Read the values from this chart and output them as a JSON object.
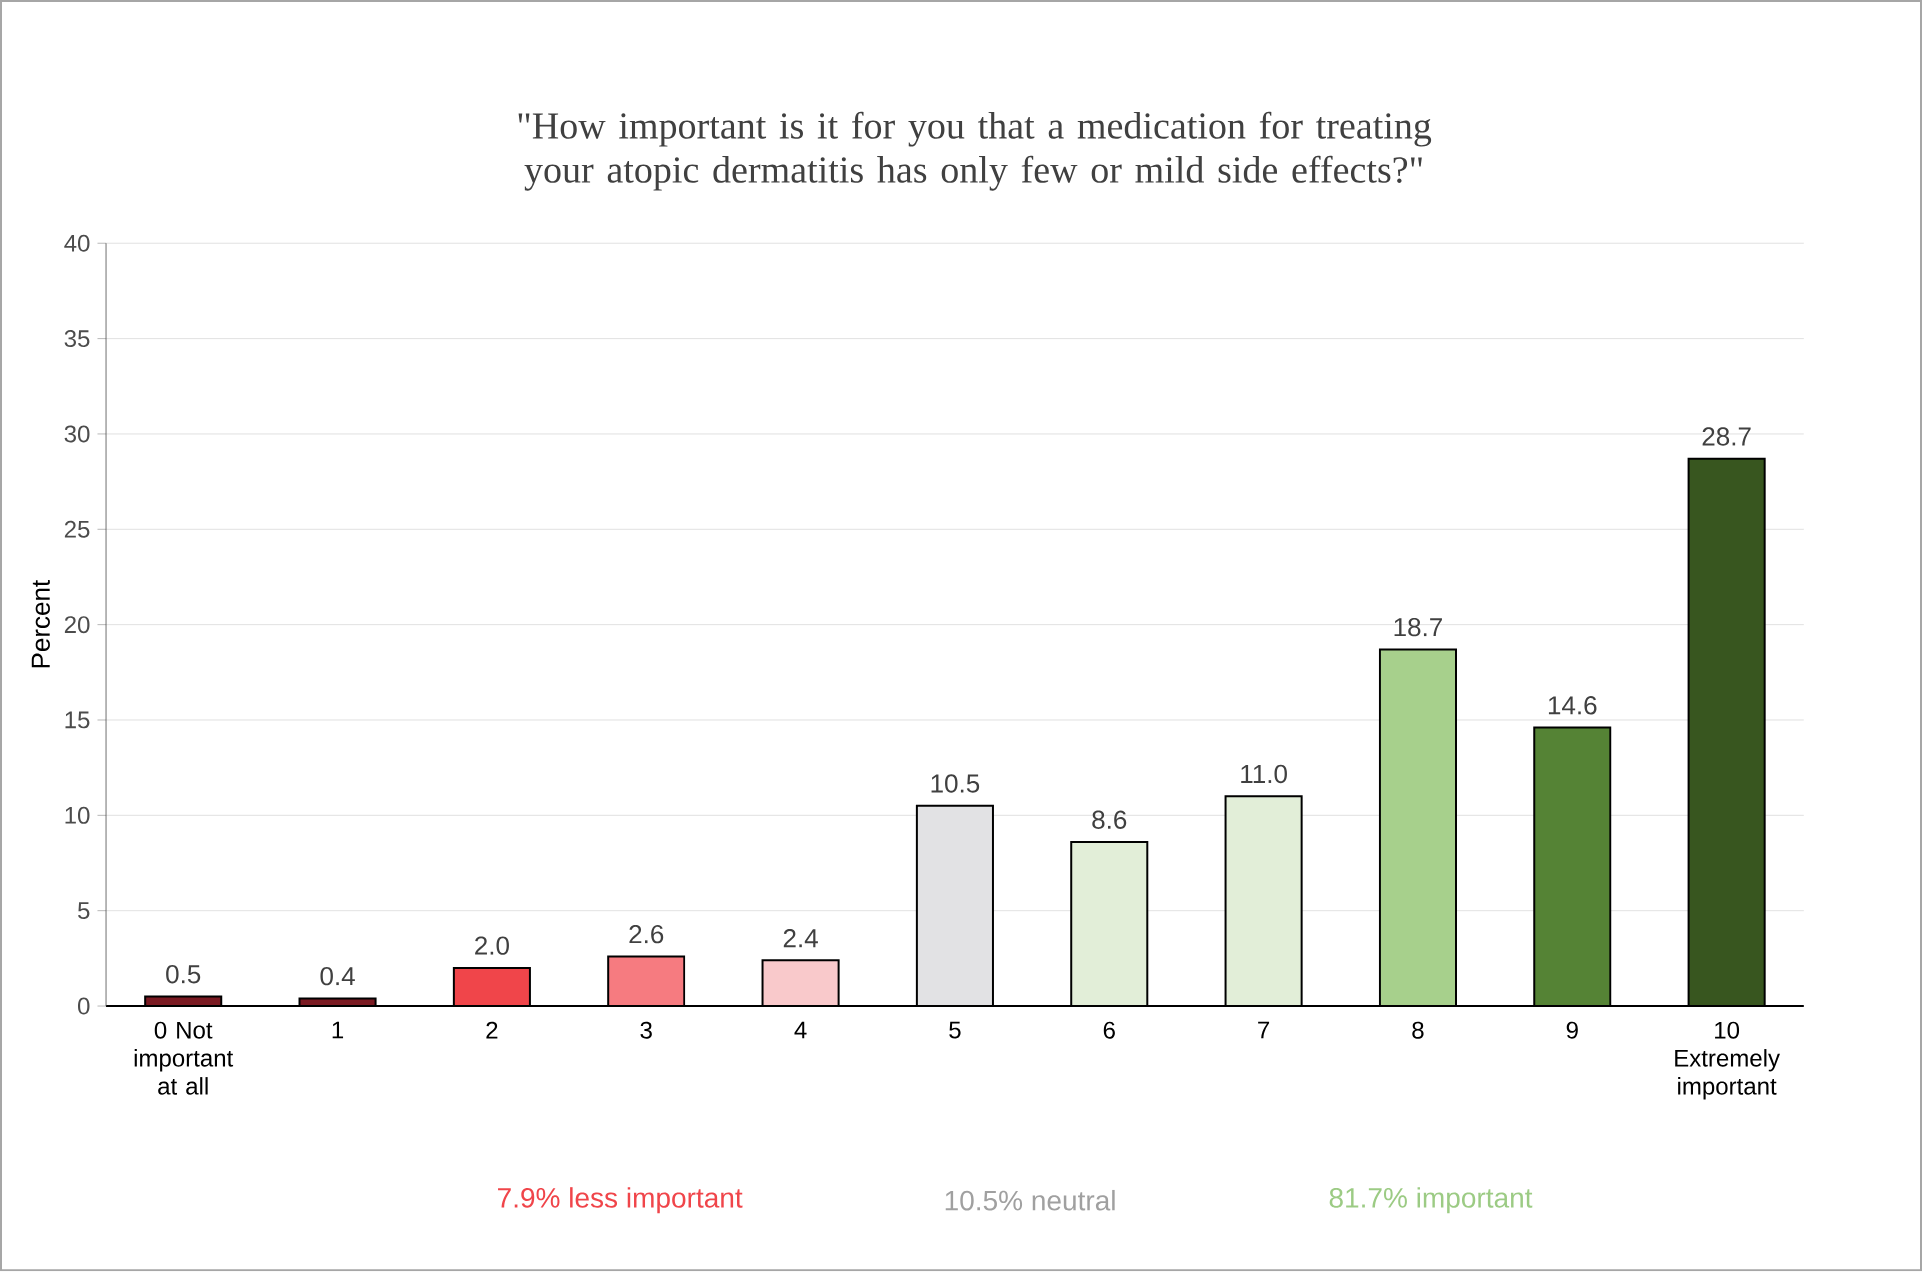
{
  "chart_data": {
    "type": "bar",
    "title": "\"How important is it for you that a medication for treating your atopic dermatitis has only few or mild side effects?\"",
    "ylabel": "Percent",
    "categories": [
      "0 Not important at all",
      "1",
      "2",
      "3",
      "4",
      "5",
      "6",
      "7",
      "8",
      "9",
      "10 Extremely important"
    ],
    "values": [
      0.5,
      0.4,
      2.0,
      2.6,
      2.4,
      10.5,
      8.6,
      11.0,
      18.7,
      14.6,
      28.7
    ],
    "value_labels": [
      "0.5",
      "0.4",
      "2.0",
      "2.6",
      "2.4",
      "10.5",
      "8.6",
      "11.0",
      "18.7",
      "14.6",
      "28.7"
    ],
    "colors": [
      "#7a1a22",
      "#7a1a22",
      "#f0454a",
      "#f67b80",
      "#f9c9cb",
      "#e2e2e4",
      "#e2eed8",
      "#e2eed8",
      "#a7d08c",
      "#558335",
      "#38561f"
    ],
    "ylim": [
      0,
      40
    ],
    "yticks": [
      0,
      5,
      10,
      15,
      20,
      25,
      30,
      35,
      40
    ],
    "grid": "y",
    "annotations": [
      "7.9% less important",
      "10.5% neutral",
      "81.7% important"
    ]
  }
}
